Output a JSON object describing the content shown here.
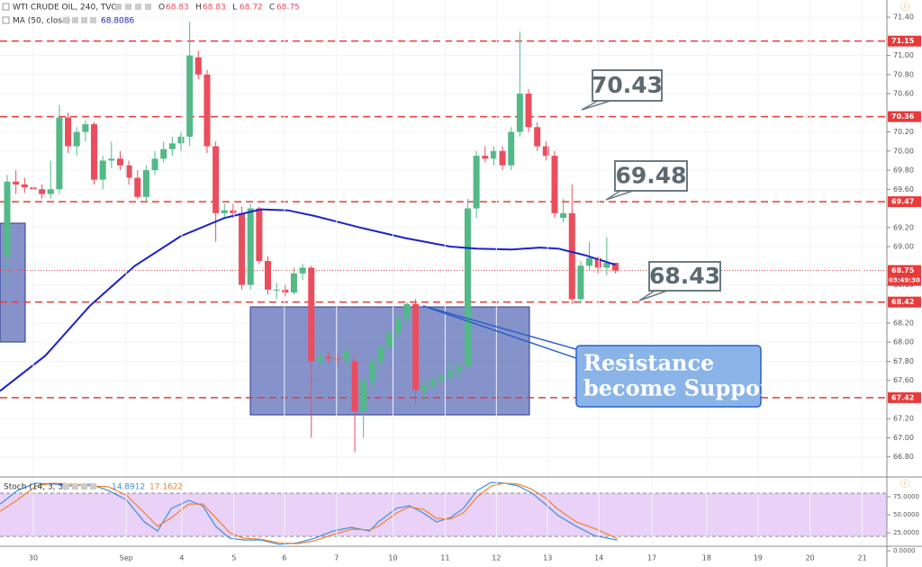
{
  "chart_data": {
    "type": "candlestick",
    "title": "WTI CRUDE OIL, 240, TVC",
    "ohlc_header": {
      "o_label": "O",
      "o": "68.83",
      "h_label": "H",
      "h": "68.83",
      "l_label": "L",
      "l": "68.72",
      "c_label": "C",
      "c": "68.75"
    },
    "up_color": "#53b987",
    "down_color": "#eb4d5c",
    "xlim": [
      -0.83,
      101.24
    ],
    "xticks": [
      {
        "value": 3.0,
        "label": "30"
      },
      {
        "value": 13.7,
        "label": "Sep"
      },
      {
        "value": 20.1,
        "label": "4"
      },
      {
        "value": 26.1,
        "label": "5"
      },
      {
        "value": 31.9,
        "label": "6"
      },
      {
        "value": 37.9,
        "label": "7"
      },
      {
        "value": 44.4,
        "label": "10"
      },
      {
        "value": 50.4,
        "label": "11"
      },
      {
        "value": 56.3,
        "label": "12"
      },
      {
        "value": 62.2,
        "label": "13"
      },
      {
        "value": 68.1,
        "label": "14"
      },
      {
        "value": 74.2,
        "label": "17"
      },
      {
        "value": 80.5,
        "label": "18"
      },
      {
        "value": 86.4,
        "label": "19"
      },
      {
        "value": 92.4,
        "label": "20"
      },
      {
        "value": 98.4,
        "label": "21"
      }
    ],
    "ylim": [
      66.59,
      71.58
    ],
    "yticks": [
      {
        "value": 71.4,
        "label": "71.40"
      },
      {
        "value": 71.0,
        "label": "71.00"
      },
      {
        "value": 70.8,
        "label": "70.80"
      },
      {
        "value": 70.6,
        "label": "70.60"
      },
      {
        "value": 70.2,
        "label": "70.20"
      },
      {
        "value": 70.0,
        "label": "70.00"
      },
      {
        "value": 69.8,
        "label": "69.80"
      },
      {
        "value": 69.6,
        "label": "69.60"
      },
      {
        "value": 69.2,
        "label": "69.20"
      },
      {
        "value": 69.0,
        "label": "69.00"
      },
      {
        "value": 68.6,
        "label": "68.60"
      },
      {
        "value": 68.2,
        "label": "68.20"
      },
      {
        "value": 68.0,
        "label": "68.00"
      },
      {
        "value": 67.8,
        "label": "67.80"
      },
      {
        "value": 67.6,
        "label": "67.60"
      },
      {
        "value": 67.2,
        "label": "67.20"
      },
      {
        "value": 67.0,
        "label": "67.00"
      },
      {
        "value": 66.8,
        "label": "66.80"
      }
    ],
    "candles": [
      [
        68.9,
        69.75,
        68.6,
        69.68
      ],
      [
        69.68,
        69.8,
        69.55,
        69.65
      ],
      [
        69.65,
        69.72,
        69.56,
        69.62
      ],
      [
        69.62,
        69.68,
        69.52,
        69.6
      ],
      [
        69.6,
        69.65,
        69.5,
        69.55
      ],
      [
        69.55,
        69.9,
        69.5,
        69.6
      ],
      [
        69.6,
        70.48,
        69.55,
        70.35
      ],
      [
        70.35,
        70.4,
        69.98,
        70.05
      ],
      [
        70.05,
        70.25,
        69.95,
        70.2
      ],
      [
        70.2,
        70.32,
        70.1,
        70.28
      ],
      [
        70.28,
        70.3,
        69.65,
        69.7
      ],
      [
        69.7,
        69.95,
        69.6,
        69.9
      ],
      [
        69.9,
        70.1,
        69.82,
        69.92
      ],
      [
        69.92,
        70.0,
        69.8,
        69.85
      ],
      [
        69.85,
        69.9,
        69.65,
        69.72
      ],
      [
        69.72,
        69.8,
        69.5,
        69.52
      ],
      [
        69.52,
        69.85,
        69.48,
        69.8
      ],
      [
        69.8,
        70.0,
        69.75,
        69.92
      ],
      [
        69.92,
        70.1,
        69.88,
        70.02
      ],
      [
        70.02,
        70.15,
        69.95,
        70.08
      ],
      [
        70.08,
        70.2,
        70.0,
        70.15
      ],
      [
        70.15,
        71.35,
        70.05,
        71.0
      ],
      [
        70.98,
        71.05,
        70.75,
        70.8
      ],
      [
        70.8,
        70.85,
        69.98,
        70.05
      ],
      [
        70.05,
        70.1,
        69.05,
        69.35
      ],
      [
        69.35,
        69.45,
        69.3,
        69.38
      ],
      [
        69.38,
        69.45,
        69.3,
        69.35
      ],
      [
        69.35,
        69.42,
        68.55,
        68.6
      ],
      [
        68.6,
        69.45,
        68.55,
        69.4
      ],
      [
        69.4,
        69.42,
        68.82,
        68.85
      ],
      [
        68.85,
        68.9,
        68.5,
        68.55
      ],
      [
        68.55,
        68.62,
        68.45,
        68.55
      ],
      [
        68.55,
        68.6,
        68.48,
        68.52
      ],
      [
        68.52,
        68.78,
        68.5,
        68.72
      ],
      [
        68.72,
        68.82,
        68.65,
        68.78
      ],
      [
        68.78,
        68.8,
        67.0,
        67.8
      ],
      [
        67.8,
        67.9,
        67.75,
        67.85
      ],
      [
        67.85,
        67.9,
        67.78,
        67.83
      ],
      [
        67.83,
        67.88,
        67.75,
        67.82
      ],
      [
        67.82,
        67.95,
        67.75,
        67.9
      ],
      [
        67.8,
        67.85,
        66.85,
        67.28
      ],
      [
        67.28,
        67.65,
        67.0,
        67.6
      ],
      [
        67.6,
        67.82,
        67.5,
        67.8
      ],
      [
        67.8,
        67.98,
        67.72,
        67.95
      ],
      [
        67.95,
        68.12,
        67.9,
        68.1
      ],
      [
        68.1,
        68.28,
        68.05,
        68.25
      ],
      [
        68.25,
        68.42,
        68.2,
        68.4
      ],
      [
        68.4,
        68.45,
        67.35,
        67.5
      ],
      [
        67.5,
        67.6,
        67.4,
        67.55
      ],
      [
        67.55,
        67.65,
        67.5,
        67.6
      ],
      [
        67.6,
        67.7,
        67.52,
        67.65
      ],
      [
        67.65,
        67.8,
        67.6,
        67.7
      ],
      [
        67.7,
        67.8,
        67.62,
        67.75
      ],
      [
        67.75,
        69.5,
        67.7,
        69.4
      ],
      [
        69.4,
        70.0,
        69.3,
        69.95
      ],
      [
        69.95,
        70.05,
        69.88,
        69.92
      ],
      [
        69.92,
        70.05,
        69.85,
        70.0
      ],
      [
        70.0,
        70.05,
        69.8,
        69.85
      ],
      [
        69.85,
        70.25,
        69.8,
        70.2
      ],
      [
        70.2,
        71.25,
        70.15,
        70.6
      ],
      [
        70.6,
        70.65,
        70.2,
        70.25
      ],
      [
        70.25,
        70.3,
        70.0,
        70.05
      ],
      [
        70.05,
        70.1,
        69.9,
        69.95
      ],
      [
        69.95,
        70.0,
        69.3,
        69.35
      ],
      [
        69.3,
        69.5,
        69.25,
        69.35
      ],
      [
        69.35,
        69.65,
        68.4,
        68.45
      ],
      [
        68.45,
        68.85,
        68.4,
        68.8
      ],
      [
        68.8,
        69.05,
        68.75,
        68.88
      ],
      [
        68.88,
        68.9,
        68.72,
        68.78
      ],
      [
        68.78,
        69.1,
        68.7,
        68.83
      ],
      [
        68.83,
        68.83,
        68.72,
        68.75
      ]
    ],
    "ma": {
      "name": "MA (50, close)",
      "last": "68.8086",
      "color": "#1e22c8",
      "x": [
        -0.83,
        4.4,
        9.5,
        14.7,
        20,
        25,
        29.2,
        32.3,
        35.4,
        40.6,
        45.8,
        51,
        54,
        58,
        61.3,
        63.4,
        66.5,
        70
      ],
      "values": [
        67.49,
        67.86,
        68.38,
        68.8,
        69.11,
        69.3,
        69.39,
        69.38,
        69.32,
        69.2,
        69.09,
        69.0,
        68.98,
        68.97,
        68.99,
        68.98,
        68.91,
        68.81
      ]
    },
    "levels": [
      71.15,
      70.36,
      69.47,
      68.42,
      67.42
    ],
    "level_color": "#e83a3a",
    "last_price": 68.75,
    "countdown": "03:49:30",
    "annotations": [
      "70.43",
      "69.48",
      "68.43"
    ],
    "note_lines": [
      "Resistance",
      "become Support"
    ],
    "stoch": {
      "name": "Stoch (14, 3, 3)",
      "ylim": [
        0,
        100
      ],
      "band": [
        20,
        80
      ],
      "yticks": [
        {
          "value": 75,
          "label": "75.0000"
        },
        {
          "value": 50,
          "label": "50.0000"
        },
        {
          "value": 25,
          "label": "25.0000"
        },
        {
          "value": 0,
          "label": "0.0000"
        }
      ],
      "x": [
        -0.8,
        1.2,
        3.3,
        5.4,
        7.5,
        9.5,
        11.6,
        13.7,
        15.8,
        17.3,
        18.9,
        20.9,
        22.5,
        24.0,
        25.6,
        27.2,
        29.2,
        31.3,
        33.4,
        35.4,
        37.5,
        39.6,
        41.7,
        42.7,
        44.8,
        46.3,
        47.9,
        49.4,
        51.0,
        52.5,
        54.1,
        55.7,
        57.2,
        58.8,
        60.3,
        61.9,
        63.4,
        65.5,
        67.6,
        70.2
      ],
      "series": [
        {
          "name": "14.8912",
          "color": "#3d8fe0",
          "values": [
            65,
            84,
            94,
            92.5,
            90,
            92.5,
            84,
            71,
            40,
            27.5,
            59,
            70,
            62.5,
            34,
            17.5,
            15,
            15,
            9,
            11,
            17.5,
            27.5,
            32.5,
            27.5,
            40,
            59,
            62.5,
            52.5,
            40,
            46,
            59,
            84,
            95,
            94,
            90,
            81,
            65,
            49,
            34,
            21,
            14.8912
          ]
        },
        {
          "name": "17.1622",
          "color": "#f0822d",
          "values": [
            55,
            71,
            90,
            94,
            92.5,
            90,
            89,
            77.5,
            52.5,
            34,
            46,
            65,
            65,
            46,
            25,
            17.5,
            16,
            11,
            10,
            14,
            22.5,
            30,
            29,
            34,
            52.5,
            61,
            57.5,
            45,
            44,
            52.5,
            75,
            90,
            94,
            92.5,
            86,
            74,
            57.5,
            40,
            31,
            17.1622
          ]
        }
      ]
    }
  }
}
